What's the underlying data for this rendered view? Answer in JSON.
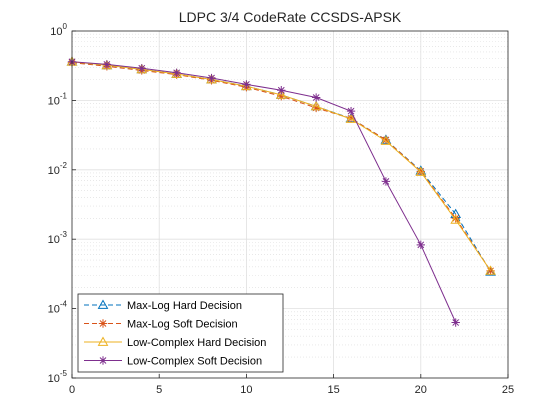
{
  "chart_data": {
    "type": "line",
    "title": "LDPC 3/4 CodeRate CCSDS-APSK",
    "xlabel": "",
    "ylabel": "",
    "xlim": [
      0,
      25
    ],
    "ylim": [
      1e-05,
      1
    ],
    "yscale": "log",
    "grid": true,
    "minor_grid": true,
    "x_ticks": [
      "0",
      "5",
      "10",
      "15",
      "20",
      "25"
    ],
    "y_ticks": [
      {
        "base": "10",
        "exp": "0"
      },
      {
        "base": "10",
        "exp": "-1"
      },
      {
        "base": "10",
        "exp": "-2"
      },
      {
        "base": "10",
        "exp": "-3"
      },
      {
        "base": "10",
        "exp": "-4"
      },
      {
        "base": "10",
        "exp": "-5"
      }
    ],
    "legend_position": "bottom-left",
    "series": [
      {
        "name": "Max-Log Hard Decision",
        "color": "#0072BD",
        "marker": "triangle",
        "line_style": "dashed",
        "x": [
          0,
          2,
          4,
          6,
          8,
          10,
          12,
          14,
          16,
          18,
          20,
          22,
          24
        ],
        "y": [
          0.36,
          0.32,
          0.28,
          0.24,
          0.2,
          0.16,
          0.12,
          0.082,
          0.055,
          0.027,
          0.0097,
          0.0023,
          0.00034
        ]
      },
      {
        "name": "Max-Log Soft Decision",
        "color": "#D95319",
        "marker": "asterisk",
        "line_style": "dashed",
        "x": [
          0,
          2,
          4,
          6,
          8,
          10,
          12,
          14,
          16,
          18,
          20,
          22,
          24
        ],
        "y": [
          0.35,
          0.31,
          0.27,
          0.235,
          0.195,
          0.155,
          0.115,
          0.078,
          0.055,
          0.027,
          0.0095,
          0.002,
          0.00035
        ]
      },
      {
        "name": "Low-Complex Hard Decision",
        "color": "#EDB120",
        "marker": "triangle",
        "line_style": "solid",
        "x": [
          0,
          2,
          4,
          6,
          8,
          10,
          12,
          14,
          16,
          18,
          20,
          22,
          24
        ],
        "y": [
          0.36,
          0.32,
          0.28,
          0.24,
          0.2,
          0.16,
          0.12,
          0.082,
          0.054,
          0.026,
          0.0093,
          0.0019,
          0.00035
        ]
      },
      {
        "name": "Low-Complex Soft Decision",
        "color": "#7E2F8E",
        "marker": "asterisk",
        "line_style": "solid",
        "x": [
          0,
          2,
          4,
          6,
          8,
          10,
          12,
          14,
          16,
          18,
          20,
          22
        ],
        "y": [
          0.36,
          0.33,
          0.29,
          0.25,
          0.21,
          0.17,
          0.14,
          0.11,
          0.07,
          0.0068,
          0.00083,
          6.3e-05
        ]
      }
    ]
  }
}
